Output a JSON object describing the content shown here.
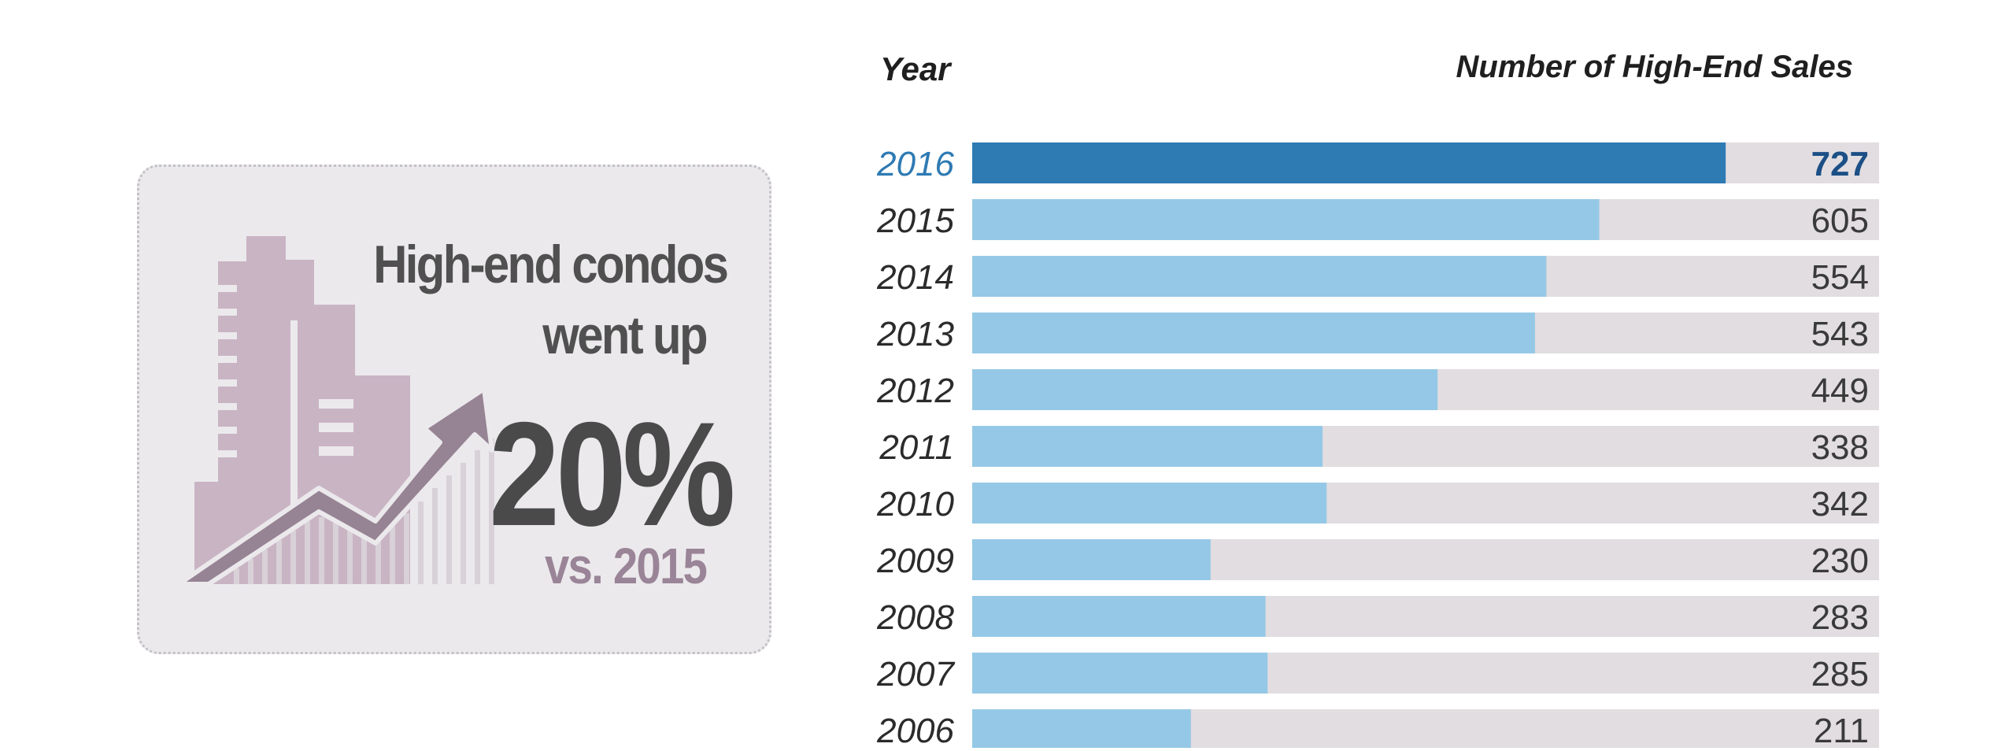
{
  "summary": {
    "line1": "High-end condos",
    "line2": "went up",
    "percent": "20%",
    "comparison": "vs. 2015"
  },
  "colors": {
    "highlight_bar": "#2e7ab3",
    "highlight_text": "#2e7ab3",
    "highlight_value": "#1b4f86",
    "bar": "#95c8e6",
    "track": "#e1dde0",
    "label": "#2b2b2b",
    "card_bg": "#ebe9ec",
    "building": "#c9b4c4",
    "arrow": "#968393"
  },
  "chart_data": {
    "type": "bar",
    "orientation": "horizontal",
    "column_header_left": "Year",
    "column_header_right": "Number of High-End Sales",
    "categories": [
      "2016",
      "2015",
      "2014",
      "2013",
      "2012",
      "2011",
      "2010",
      "2009",
      "2008",
      "2007",
      "2006"
    ],
    "values": [
      727,
      605,
      554,
      543,
      449,
      338,
      342,
      230,
      283,
      285,
      211
    ],
    "highlight": "2016",
    "xlim": [
      0,
      875
    ]
  }
}
